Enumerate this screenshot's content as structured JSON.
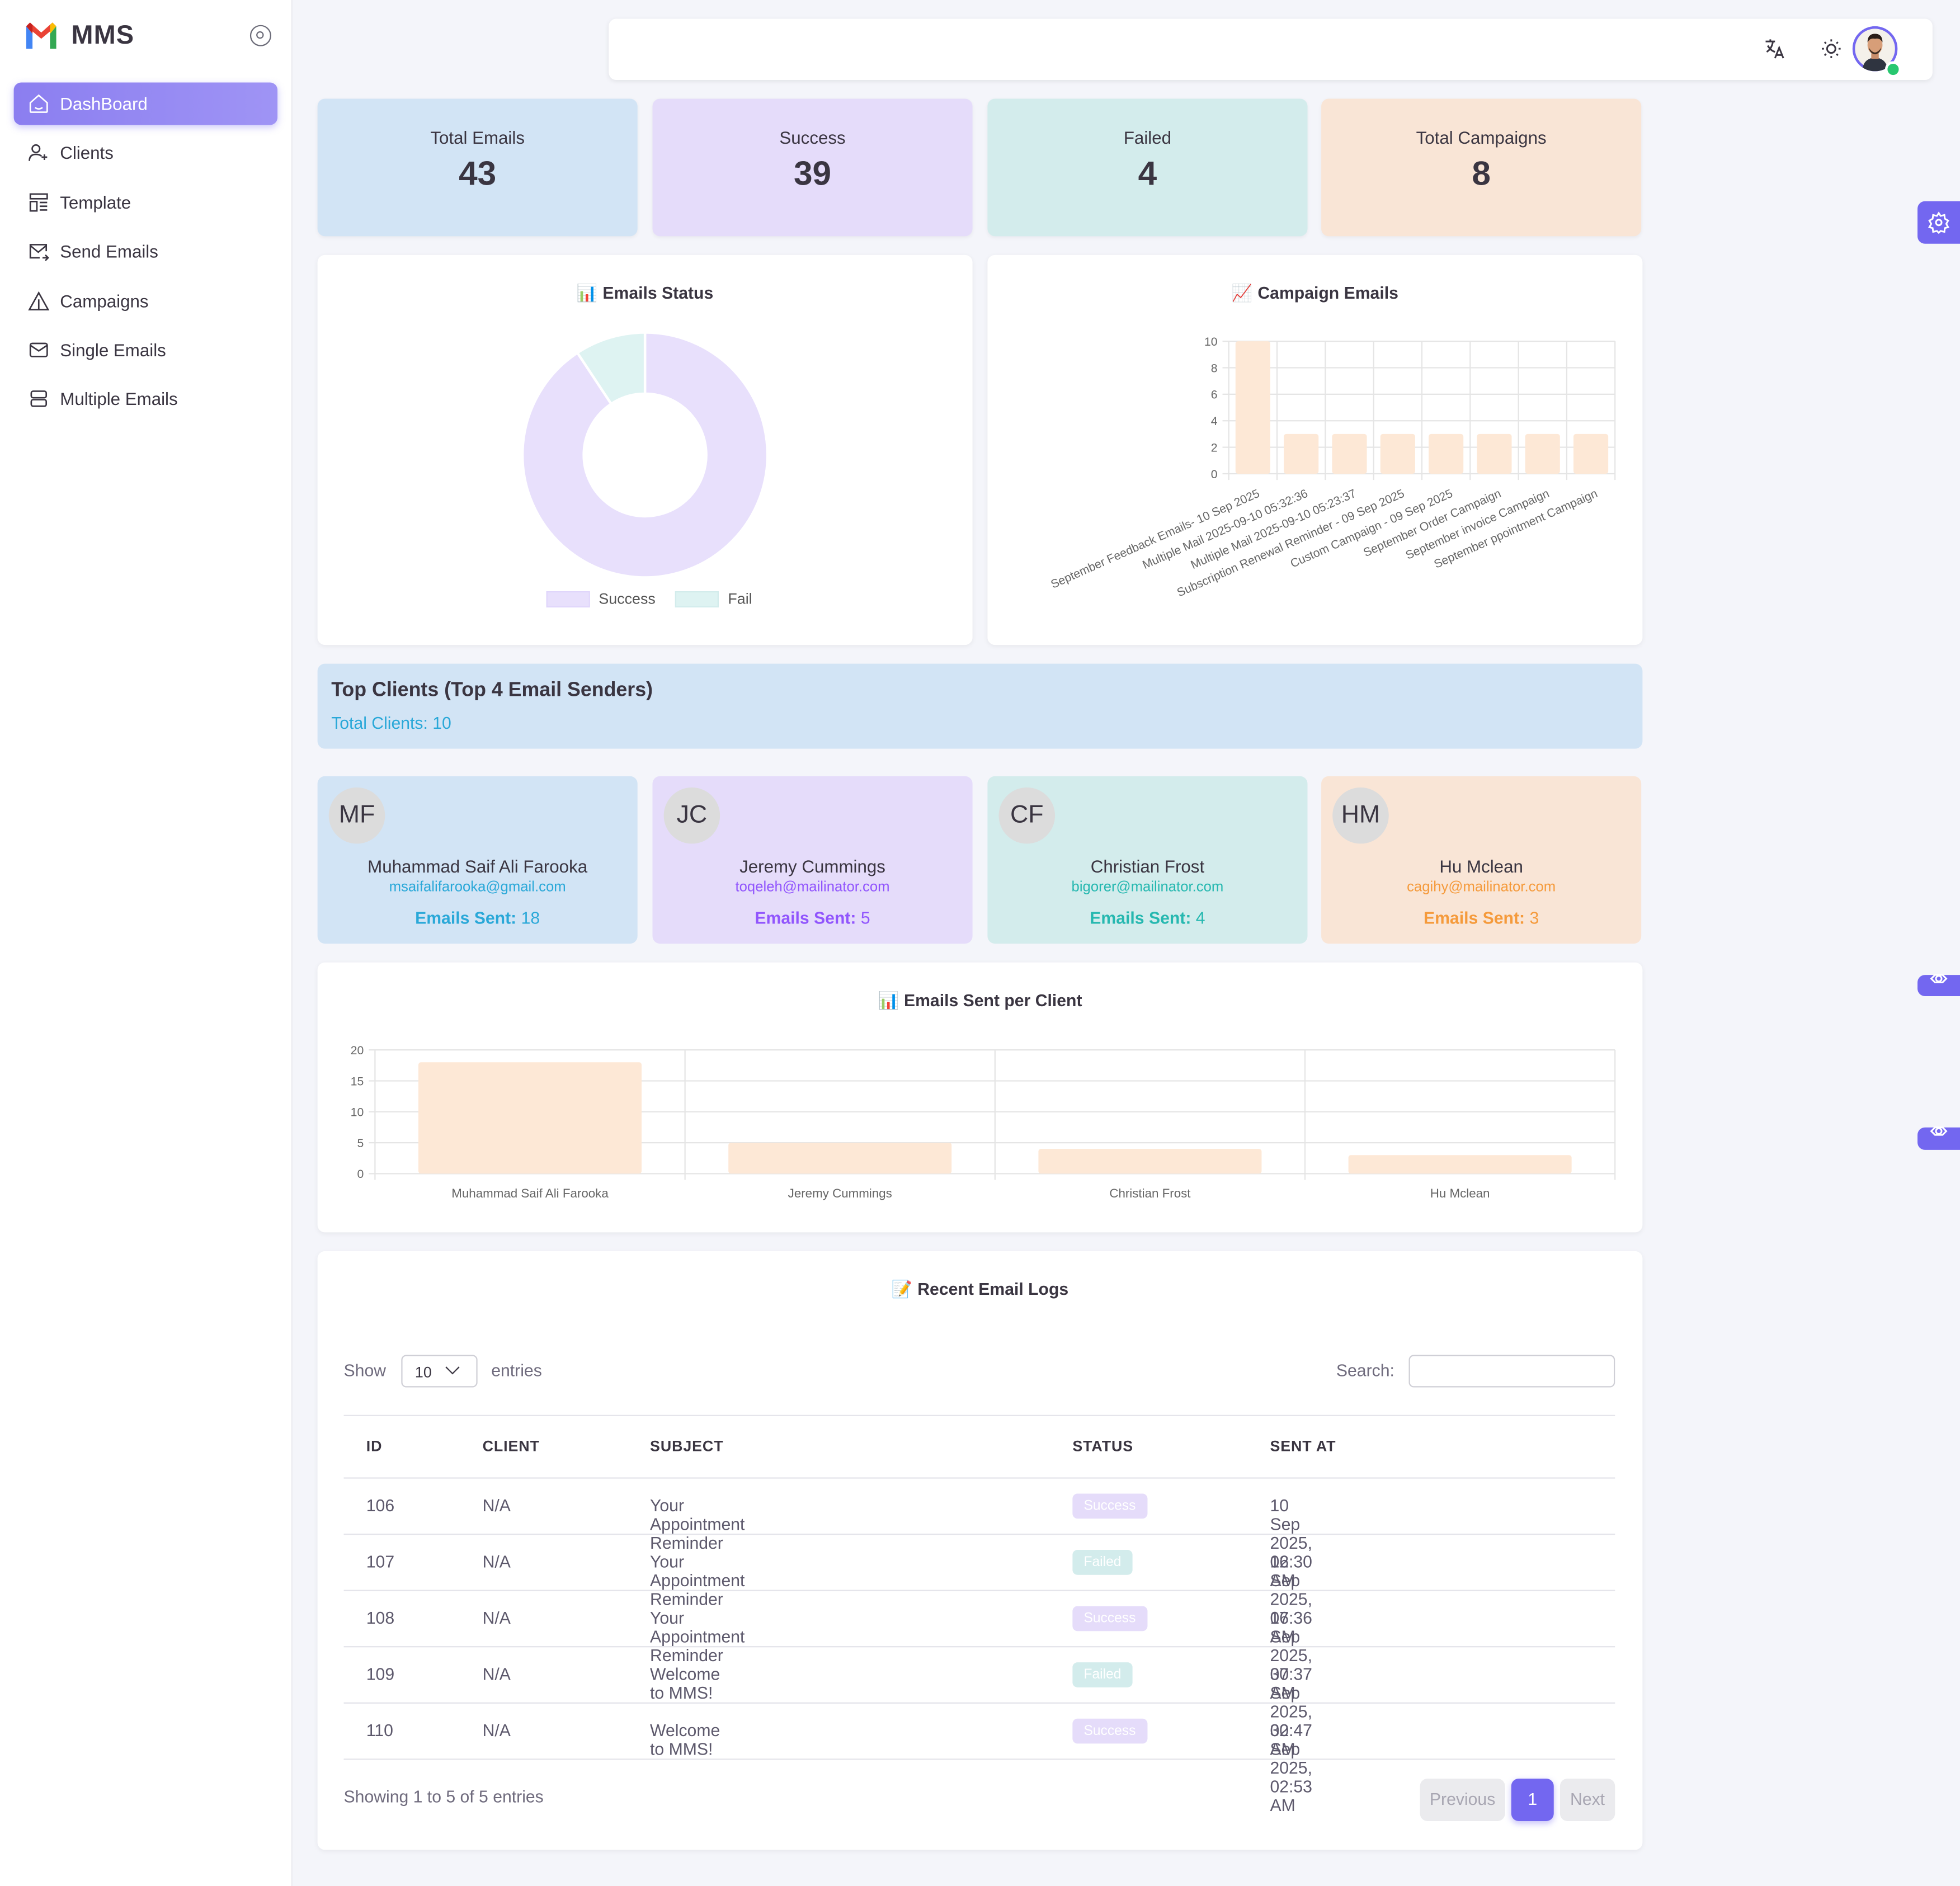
{
  "app": {
    "name": "MMS"
  },
  "sidebar": {
    "items": [
      {
        "label": "DashBoard",
        "icon": "home-icon",
        "active": true
      },
      {
        "label": "Clients",
        "icon": "user-plus-icon"
      },
      {
        "label": "Template",
        "icon": "template-icon"
      },
      {
        "label": "Send Emails",
        "icon": "mail-send-icon"
      },
      {
        "label": "Campaigns",
        "icon": "triangle-alert-icon"
      },
      {
        "label": "Single Emails",
        "icon": "mail-icon"
      },
      {
        "label": "Multiple Emails",
        "icon": "stack-icon"
      }
    ]
  },
  "topbar": {
    "icons": [
      "translate-icon",
      "sun-icon",
      "user-avatar"
    ],
    "online": true
  },
  "stats": [
    {
      "label": "Total Emails",
      "value": "43",
      "color": "#d2e4f5"
    },
    {
      "label": "Success",
      "value": "39",
      "color": "#e5dcfa"
    },
    {
      "label": "Failed",
      "value": "4",
      "color": "#d3ecec"
    },
    {
      "label": "Total Campaigns",
      "value": "8",
      "color": "#f9e5d6"
    }
  ],
  "emails_status": {
    "title": "Emails Status",
    "emoji": "📊",
    "legend": [
      "Success",
      "Fail"
    ]
  },
  "campaign_emails": {
    "title": "Campaign Emails",
    "emoji": "📈"
  },
  "top_clients": {
    "title": "Top Clients (Top 4 Email Senders)",
    "total_label": "Total Clients: 10",
    "sent_label": "Emails Sent:",
    "clients": [
      {
        "initials": "MF",
        "name": "Muhammad Saif Ali Farooka",
        "email": "msaifalifarooka@gmail.com",
        "sent": "18",
        "bg": "#d2e4f5",
        "accent": "#2aa8d8"
      },
      {
        "initials": "JC",
        "name": "Jeremy Cummings",
        "email": "toqeleh@mailinator.com",
        "sent": "5",
        "bg": "#e5dcfa",
        "accent": "#9155fd"
      },
      {
        "initials": "CF",
        "name": "Christian Frost",
        "email": "bigorer@mailinator.com",
        "sent": "4",
        "bg": "#d3ecec",
        "accent": "#26b8b0"
      },
      {
        "initials": "HM",
        "name": "Hu Mclean",
        "email": "cagihy@mailinator.com",
        "sent": "3",
        "bg": "#f9e5d6",
        "accent": "#f59a3b"
      }
    ]
  },
  "per_client": {
    "title": "Emails Sent per Client",
    "emoji": "📊"
  },
  "logs": {
    "title": "Recent Email Logs",
    "emoji": "📝",
    "show_label": "Show",
    "entries_value": "10",
    "entries_label": "entries",
    "search_label": "Search:",
    "search_value": "",
    "columns": [
      "ID",
      "CLIENT",
      "SUBJECT",
      "STATUS",
      "SENT AT"
    ],
    "rows": [
      {
        "id": "106",
        "client": "N/A",
        "subject": "Your Appointment Reminder",
        "status": "Success",
        "sent_at": "10 Sep 2025, 02:30 AM"
      },
      {
        "id": "107",
        "client": "N/A",
        "subject": "Your Appointment Reminder",
        "status": "Failed",
        "sent_at": "16 Sep 2025, 07:36 AM"
      },
      {
        "id": "108",
        "client": "N/A",
        "subject": "Your Appointment Reminder",
        "status": "Success",
        "sent_at": "16 Sep 2025, 07:37 AM"
      },
      {
        "id": "109",
        "client": "N/A",
        "subject": "Welcome to MMS!",
        "status": "Failed",
        "sent_at": "30 Sep 2025, 02:47 AM"
      },
      {
        "id": "110",
        "client": "N/A",
        "subject": "Welcome to MMS!",
        "status": "Success",
        "sent_at": "30 Sep 2025, 02:53 AM"
      }
    ],
    "footer_info": "Showing 1 to 5 of 5 entries",
    "pagination": {
      "previous": "Previous",
      "current": "1",
      "next": "Next"
    }
  },
  "colors": {
    "accent": "#7367f0",
    "success_badge": "#e5dcfa",
    "failed_badge": "#d3ecec",
    "bar_fill": "#fde8d6"
  },
  "chart_data": [
    {
      "type": "pie",
      "title": "Emails Status",
      "categories": [
        "Success",
        "Fail"
      ],
      "values": [
        39,
        4
      ],
      "colors": [
        "#e8e0fc",
        "#def3f2"
      ],
      "legend": "bottom"
    },
    {
      "type": "bar",
      "title": "Campaign Emails",
      "categories": [
        "September Feedback Emails- 10 Sep 2025",
        "Multiple Mail 2025-09-10 05:32:36",
        "Multiple Mail 2025-09-10 05:23:37",
        "Subscription Renewal Reminder - 09 Sep 2025",
        "Custom Campaign - 09 Sep 2025",
        "September Order Campaign",
        "September invoice Campaign",
        "September ppointment Campaign"
      ],
      "values": [
        10,
        3,
        3,
        3,
        3,
        3,
        3,
        3
      ],
      "ylim": [
        0,
        10
      ],
      "yticks": [
        0,
        2,
        4,
        6,
        8,
        10
      ],
      "grid": true
    },
    {
      "type": "bar",
      "title": "Emails Sent per Client",
      "categories": [
        "Muhammad Saif Ali Farooka",
        "Jeremy Cummings",
        "Christian Frost",
        "Hu Mclean"
      ],
      "values": [
        18,
        5,
        4,
        3
      ],
      "ylim": [
        0,
        20
      ],
      "yticks": [
        0,
        5,
        10,
        15,
        20
      ],
      "grid": true
    }
  ]
}
